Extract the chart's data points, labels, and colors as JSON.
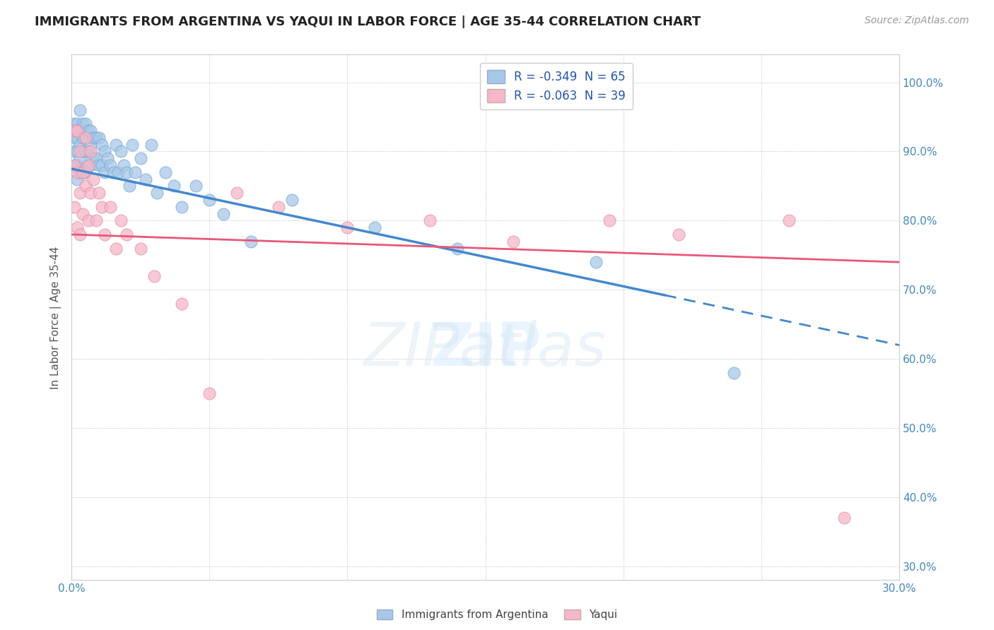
{
  "title": "IMMIGRANTS FROM ARGENTINA VS YAQUI IN LABOR FORCE | AGE 35-44 CORRELATION CHART",
  "source": "Source: ZipAtlas.com",
  "ylabel": "In Labor Force | Age 35-44",
  "xlim": [
    0.0,
    0.3
  ],
  "ylim": [
    0.28,
    1.04
  ],
  "xticks": [
    0.0,
    0.05,
    0.1,
    0.15,
    0.2,
    0.25,
    0.3
  ],
  "yticks": [
    0.3,
    0.4,
    0.5,
    0.6,
    0.7,
    0.8,
    0.9,
    1.0
  ],
  "xtick_labels": [
    "0.0%",
    "",
    "",
    "",
    "",
    "",
    "30.0%"
  ],
  "ytick_labels": [
    "30.0%",
    "40.0%",
    "50.0%",
    "60.0%",
    "70.0%",
    "80.0%",
    "90.0%",
    "100.0%"
  ],
  "argentina_color": "#a8c8e8",
  "yaqui_color": "#f4b8c8",
  "argentina_edge": "#7aadd4",
  "yaqui_edge": "#e890a8",
  "trend_argentina_color": "#4488cc",
  "trend_yaqui_color": "#e85878",
  "legend_argentina_label": "R = -0.349  N = 65",
  "legend_yaqui_label": "R = -0.063  N = 39",
  "legend_argentina_color": "#a8c8e8",
  "legend_yaqui_color": "#f4b8c8",
  "watermark_text": "ZIPatlas",
  "argentina_x": [
    0.001,
    0.001,
    0.001,
    0.001,
    0.002,
    0.002,
    0.002,
    0.002,
    0.002,
    0.003,
    0.003,
    0.003,
    0.003,
    0.003,
    0.004,
    0.004,
    0.004,
    0.004,
    0.005,
    0.005,
    0.005,
    0.005,
    0.006,
    0.006,
    0.006,
    0.007,
    0.007,
    0.007,
    0.008,
    0.008,
    0.009,
    0.009,
    0.01,
    0.01,
    0.011,
    0.011,
    0.012,
    0.012,
    0.013,
    0.014,
    0.015,
    0.016,
    0.017,
    0.018,
    0.019,
    0.02,
    0.021,
    0.022,
    0.023,
    0.025,
    0.027,
    0.029,
    0.031,
    0.034,
    0.037,
    0.04,
    0.045,
    0.05,
    0.055,
    0.065,
    0.08,
    0.11,
    0.14,
    0.19,
    0.24
  ],
  "argentina_y": [
    0.94,
    0.92,
    0.9,
    0.88,
    0.94,
    0.92,
    0.9,
    0.88,
    0.86,
    0.96,
    0.93,
    0.91,
    0.89,
    0.87,
    0.94,
    0.92,
    0.9,
    0.87,
    0.94,
    0.92,
    0.9,
    0.87,
    0.93,
    0.9,
    0.88,
    0.93,
    0.91,
    0.88,
    0.92,
    0.89,
    0.92,
    0.89,
    0.92,
    0.88,
    0.91,
    0.88,
    0.9,
    0.87,
    0.89,
    0.88,
    0.87,
    0.91,
    0.87,
    0.9,
    0.88,
    0.87,
    0.85,
    0.91,
    0.87,
    0.89,
    0.86,
    0.91,
    0.84,
    0.87,
    0.85,
    0.82,
    0.85,
    0.83,
    0.81,
    0.77,
    0.83,
    0.79,
    0.76,
    0.74,
    0.58
  ],
  "yaqui_x": [
    0.001,
    0.001,
    0.001,
    0.002,
    0.002,
    0.002,
    0.003,
    0.003,
    0.003,
    0.004,
    0.004,
    0.005,
    0.005,
    0.006,
    0.006,
    0.007,
    0.007,
    0.008,
    0.009,
    0.01,
    0.011,
    0.012,
    0.014,
    0.016,
    0.018,
    0.02,
    0.025,
    0.03,
    0.04,
    0.05,
    0.06,
    0.075,
    0.1,
    0.13,
    0.16,
    0.195,
    0.22,
    0.26,
    0.28
  ],
  "yaqui_y": [
    0.93,
    0.88,
    0.82,
    0.93,
    0.87,
    0.79,
    0.9,
    0.84,
    0.78,
    0.87,
    0.81,
    0.92,
    0.85,
    0.88,
    0.8,
    0.9,
    0.84,
    0.86,
    0.8,
    0.84,
    0.82,
    0.78,
    0.82,
    0.76,
    0.8,
    0.78,
    0.76,
    0.72,
    0.68,
    0.55,
    0.84,
    0.82,
    0.79,
    0.8,
    0.77,
    0.8,
    0.78,
    0.8,
    0.37
  ],
  "trend_arg_x0": 0.0,
  "trend_arg_y0": 0.875,
  "trend_arg_x1": 0.3,
  "trend_arg_y1": 0.62,
  "trend_arg_solid_end": 0.215,
  "trend_yaq_x0": 0.0,
  "trend_yaq_y0": 0.78,
  "trend_yaq_x1": 0.3,
  "trend_yaq_y1": 0.74
}
